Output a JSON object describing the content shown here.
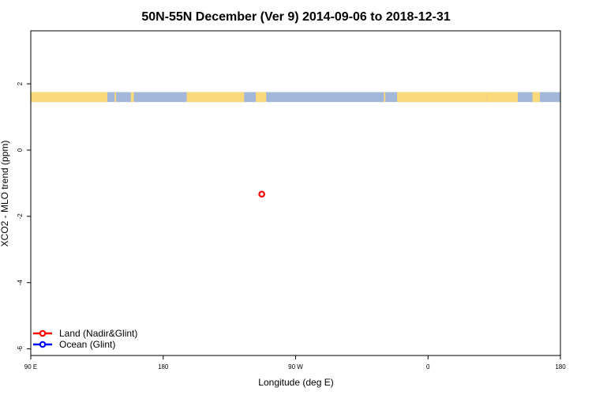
{
  "chart_data": {
    "type": "scatter",
    "title": "50N-55N December (Ver 9)   2014-09-06 to 2018-12-31",
    "xlabel": "Longitude (deg E)",
    "ylabel": "XCO2 - MLO trend (ppm)",
    "xlim": [
      90,
      450
    ],
    "ylim": [
      -6.2,
      3.6
    ],
    "x_ticks": [
      {
        "value": 90,
        "label": "90 E"
      },
      {
        "value": 180,
        "label": "180"
      },
      {
        "value": 270,
        "label": "90 W"
      },
      {
        "value": 360,
        "label": "0"
      },
      {
        "value": 450,
        "label": "180"
      }
    ],
    "y_ticks": [
      {
        "value": -6,
        "label": "-6"
      },
      {
        "value": -4,
        "label": "-4"
      },
      {
        "value": -2,
        "label": "-2"
      },
      {
        "value": 0,
        "label": "0"
      },
      {
        "value": 2,
        "label": "2"
      }
    ],
    "series": [
      {
        "name": "Land (Nadir&Glint)",
        "color": "#ff0000",
        "points": [
          {
            "x": 247,
            "y": -1.33
          }
        ]
      },
      {
        "name": "Ocean (Glint)",
        "color": "#0000ff",
        "points": []
      }
    ],
    "land_mask_band": {
      "y_range": [
        1.45,
        1.75
      ],
      "ocean_color": "#a3b8d9",
      "land_color": "#fad97a",
      "land_segments": [
        [
          90,
          142
        ],
        [
          147,
          148
        ],
        [
          158,
          160
        ],
        [
          196,
          235
        ],
        [
          243,
          250
        ],
        [
          330,
          331
        ],
        [
          339,
          400
        ],
        [
          400,
          421
        ],
        [
          431,
          436
        ]
      ]
    },
    "legend_position": "bottom-left",
    "grid": false
  }
}
